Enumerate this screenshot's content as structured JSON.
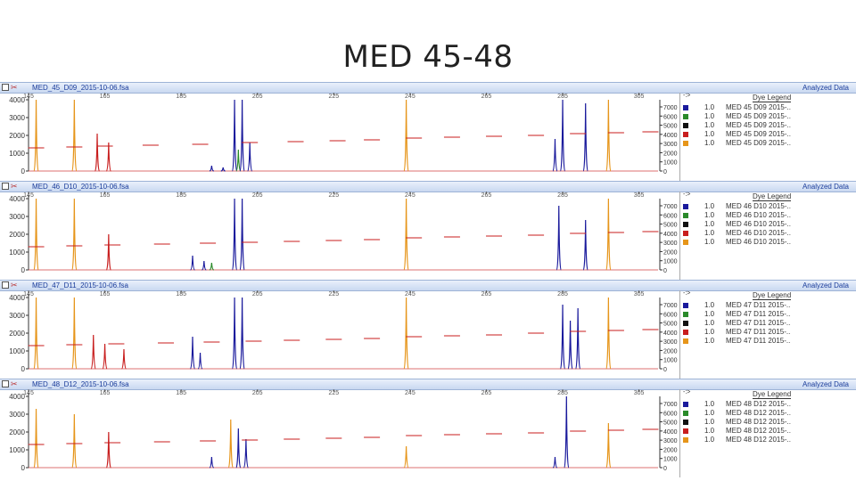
{
  "slide": {
    "title": "MED 45-48"
  },
  "x_ticks": [
    145,
    165,
    185,
    205,
    225,
    245,
    265,
    285,
    305
  ],
  "y_ticks": [
    0,
    1000,
    2000,
    3000,
    4000
  ],
  "size_ticks": [
    0,
    1000,
    2000,
    3000,
    4000,
    5000,
    6000,
    7000
  ],
  "legend_title": "Dye Legend",
  "legend_arrow": "-:>",
  "status_text": "Analyzed Data",
  "colors": {
    "blue": "#1a1a9c",
    "green": "#2a8a2a",
    "black": "#111111",
    "red": "#c81e1e",
    "orange": "#e6951a",
    "header": "#c9d8f1"
  },
  "chart_data": [
    {
      "type": "line",
      "file": "MED_45_D09_2015-10-06.fsa",
      "xlim": [
        145,
        310
      ],
      "ylim": [
        0,
        4000
      ],
      "legend": [
        {
          "color": "blue",
          "weight": "1.0",
          "name": "MED 45 D09 2015-.."
        },
        {
          "color": "green",
          "weight": "1.0",
          "name": "MED 45 D09 2015-.."
        },
        {
          "color": "black",
          "weight": "1.0",
          "name": "MED 45 D09 2015-.."
        },
        {
          "color": "red",
          "weight": "1.0",
          "name": "MED 45 D09 2015-.."
        },
        {
          "color": "orange",
          "weight": "1.0",
          "name": "MED 45 D09 2015-.."
        }
      ],
      "peaks": [
        {
          "x": 147,
          "h": 4000,
          "c": "orange"
        },
        {
          "x": 157,
          "h": 4000,
          "c": "orange"
        },
        {
          "x": 163,
          "h": 2100,
          "c": "red"
        },
        {
          "x": 166,
          "h": 1600,
          "c": "red"
        },
        {
          "x": 193,
          "h": 300,
          "c": "blue"
        },
        {
          "x": 196,
          "h": 200,
          "c": "blue"
        },
        {
          "x": 199,
          "h": 4000,
          "c": "blue"
        },
        {
          "x": 200,
          "h": 1200,
          "c": "green"
        },
        {
          "x": 201,
          "h": 4000,
          "c": "blue"
        },
        {
          "x": 203,
          "h": 1600,
          "c": "blue"
        },
        {
          "x": 244,
          "h": 4000,
          "c": "orange"
        },
        {
          "x": 283,
          "h": 1800,
          "c": "blue"
        },
        {
          "x": 285,
          "h": 4000,
          "c": "blue"
        },
        {
          "x": 291,
          "h": 3800,
          "c": "blue"
        },
        {
          "x": 297,
          "h": 4000,
          "c": "orange"
        }
      ],
      "size_markers": [
        {
          "x": 147,
          "y": 1300
        },
        {
          "x": 157,
          "y": 1350
        },
        {
          "x": 165,
          "y": 1400
        },
        {
          "x": 177,
          "y": 1450
        },
        {
          "x": 190,
          "y": 1500
        },
        {
          "x": 203,
          "y": 1600
        },
        {
          "x": 215,
          "y": 1650
        },
        {
          "x": 226,
          "y": 1700
        },
        {
          "x": 235,
          "y": 1750
        },
        {
          "x": 246,
          "y": 1850
        },
        {
          "x": 256,
          "y": 1900
        },
        {
          "x": 267,
          "y": 1950
        },
        {
          "x": 278,
          "y": 2000
        },
        {
          "x": 289,
          "y": 2100
        },
        {
          "x": 299,
          "y": 2150
        },
        {
          "x": 308,
          "y": 2200
        }
      ]
    },
    {
      "type": "line",
      "file": "MED_46_D10_2015-10-06.fsa",
      "xlim": [
        145,
        310
      ],
      "ylim": [
        0,
        4000
      ],
      "legend": [
        {
          "color": "blue",
          "weight": "1.0",
          "name": "MED 46 D10 2015-.."
        },
        {
          "color": "green",
          "weight": "1.0",
          "name": "MED 46 D10 2015-.."
        },
        {
          "color": "black",
          "weight": "1.0",
          "name": "MED 46 D10 2015-.."
        },
        {
          "color": "red",
          "weight": "1.0",
          "name": "MED 46 D10 2015-.."
        },
        {
          "color": "orange",
          "weight": "1.0",
          "name": "MED 46 D10 2015-.."
        }
      ],
      "peaks": [
        {
          "x": 147,
          "h": 4000,
          "c": "orange"
        },
        {
          "x": 157,
          "h": 4000,
          "c": "orange"
        },
        {
          "x": 166,
          "h": 2000,
          "c": "red"
        },
        {
          "x": 188,
          "h": 800,
          "c": "blue"
        },
        {
          "x": 191,
          "h": 500,
          "c": "blue"
        },
        {
          "x": 193,
          "h": 400,
          "c": "green"
        },
        {
          "x": 199,
          "h": 4000,
          "c": "blue"
        },
        {
          "x": 201,
          "h": 4000,
          "c": "blue"
        },
        {
          "x": 244,
          "h": 4000,
          "c": "orange"
        },
        {
          "x": 284,
          "h": 3600,
          "c": "blue"
        },
        {
          "x": 291,
          "h": 2800,
          "c": "blue"
        },
        {
          "x": 297,
          "h": 4000,
          "c": "orange"
        }
      ],
      "size_markers": [
        {
          "x": 147,
          "y": 1300
        },
        {
          "x": 157,
          "y": 1350
        },
        {
          "x": 167,
          "y": 1400
        },
        {
          "x": 180,
          "y": 1450
        },
        {
          "x": 192,
          "y": 1500
        },
        {
          "x": 203,
          "y": 1550
        },
        {
          "x": 214,
          "y": 1600
        },
        {
          "x": 225,
          "y": 1650
        },
        {
          "x": 235,
          "y": 1700
        },
        {
          "x": 246,
          "y": 1800
        },
        {
          "x": 256,
          "y": 1850
        },
        {
          "x": 267,
          "y": 1900
        },
        {
          "x": 278,
          "y": 1950
        },
        {
          "x": 289,
          "y": 2050
        },
        {
          "x": 299,
          "y": 2100
        },
        {
          "x": 308,
          "y": 2150
        }
      ]
    },
    {
      "type": "line",
      "file": "MED_47_D11_2015-10-06.fsa",
      "xlim": [
        145,
        310
      ],
      "ylim": [
        0,
        4000
      ],
      "legend": [
        {
          "color": "blue",
          "weight": "1.0",
          "name": "MED 47 D11 2015-.."
        },
        {
          "color": "green",
          "weight": "1.0",
          "name": "MED 47 D11 2015-.."
        },
        {
          "color": "black",
          "weight": "1.0",
          "name": "MED 47 D11 2015-.."
        },
        {
          "color": "red",
          "weight": "1.0",
          "name": "MED 47 D11 2015-.."
        },
        {
          "color": "orange",
          "weight": "1.0",
          "name": "MED 47 D11 2015-.."
        }
      ],
      "peaks": [
        {
          "x": 147,
          "h": 4000,
          "c": "orange"
        },
        {
          "x": 157,
          "h": 4000,
          "c": "orange"
        },
        {
          "x": 162,
          "h": 1900,
          "c": "red"
        },
        {
          "x": 165,
          "h": 1400,
          "c": "red"
        },
        {
          "x": 170,
          "h": 1100,
          "c": "red"
        },
        {
          "x": 188,
          "h": 1800,
          "c": "blue"
        },
        {
          "x": 190,
          "h": 900,
          "c": "blue"
        },
        {
          "x": 199,
          "h": 4000,
          "c": "blue"
        },
        {
          "x": 201,
          "h": 4000,
          "c": "blue"
        },
        {
          "x": 244,
          "h": 4000,
          "c": "orange"
        },
        {
          "x": 285,
          "h": 3600,
          "c": "blue"
        },
        {
          "x": 287,
          "h": 2700,
          "c": "blue"
        },
        {
          "x": 289,
          "h": 3400,
          "c": "blue"
        },
        {
          "x": 297,
          "h": 4000,
          "c": "orange"
        }
      ],
      "size_markers": [
        {
          "x": 147,
          "y": 1300
        },
        {
          "x": 157,
          "y": 1350
        },
        {
          "x": 168,
          "y": 1400
        },
        {
          "x": 181,
          "y": 1450
        },
        {
          "x": 193,
          "y": 1500
        },
        {
          "x": 204,
          "y": 1550
        },
        {
          "x": 214,
          "y": 1600
        },
        {
          "x": 225,
          "y": 1650
        },
        {
          "x": 235,
          "y": 1700
        },
        {
          "x": 246,
          "y": 1800
        },
        {
          "x": 256,
          "y": 1850
        },
        {
          "x": 267,
          "y": 1900
        },
        {
          "x": 278,
          "y": 2000
        },
        {
          "x": 289,
          "y": 2100
        },
        {
          "x": 299,
          "y": 2150
        },
        {
          "x": 308,
          "y": 2200
        }
      ]
    },
    {
      "type": "line",
      "file": "MED_48_D12_2015-10-06.fsa",
      "xlim": [
        145,
        310
      ],
      "ylim": [
        0,
        4000
      ],
      "legend": [
        {
          "color": "blue",
          "weight": "1.0",
          "name": "MED 48 D12 2015-.."
        },
        {
          "color": "green",
          "weight": "1.0",
          "name": "MED 48 D12 2015-.."
        },
        {
          "color": "black",
          "weight": "1.0",
          "name": "MED 48 D12 2015-.."
        },
        {
          "color": "red",
          "weight": "1.0",
          "name": "MED 48 D12 2015-.."
        },
        {
          "color": "orange",
          "weight": "1.0",
          "name": "MED 48 D12 2015-.."
        }
      ],
      "peaks": [
        {
          "x": 147,
          "h": 3300,
          "c": "orange"
        },
        {
          "x": 157,
          "h": 3000,
          "c": "orange"
        },
        {
          "x": 166,
          "h": 2000,
          "c": "red"
        },
        {
          "x": 193,
          "h": 600,
          "c": "blue"
        },
        {
          "x": 198,
          "h": 2700,
          "c": "orange"
        },
        {
          "x": 200,
          "h": 2200,
          "c": "blue"
        },
        {
          "x": 202,
          "h": 1600,
          "c": "blue"
        },
        {
          "x": 244,
          "h": 1200,
          "c": "orange"
        },
        {
          "x": 283,
          "h": 600,
          "c": "blue"
        },
        {
          "x": 286,
          "h": 4000,
          "c": "blue"
        },
        {
          "x": 297,
          "h": 2500,
          "c": "orange"
        }
      ],
      "size_markers": [
        {
          "x": 147,
          "y": 1300
        },
        {
          "x": 157,
          "y": 1350
        },
        {
          "x": 167,
          "y": 1400
        },
        {
          "x": 180,
          "y": 1450
        },
        {
          "x": 192,
          "y": 1500
        },
        {
          "x": 203,
          "y": 1550
        },
        {
          "x": 214,
          "y": 1600
        },
        {
          "x": 225,
          "y": 1650
        },
        {
          "x": 235,
          "y": 1700
        },
        {
          "x": 246,
          "y": 1800
        },
        {
          "x": 256,
          "y": 1850
        },
        {
          "x": 267,
          "y": 1900
        },
        {
          "x": 278,
          "y": 1950
        },
        {
          "x": 289,
          "y": 2050
        },
        {
          "x": 299,
          "y": 2100
        },
        {
          "x": 308,
          "y": 2150
        }
      ]
    }
  ]
}
